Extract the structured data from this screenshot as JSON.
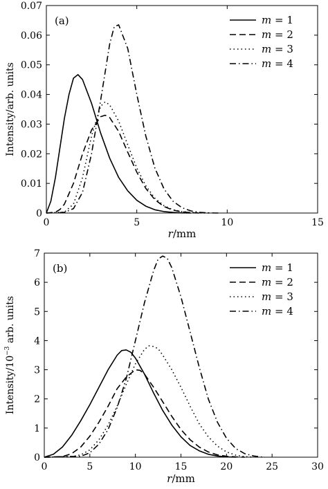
{
  "chart_data": [
    {
      "type": "line",
      "panel_label": "(a)",
      "ylabel": "Intensity/arb. units",
      "xlabel_var": "r",
      "xlabel_unit": "/mm",
      "xlim": [
        0,
        15
      ],
      "ylim": [
        0,
        0.07
      ],
      "xticks": [
        0,
        5,
        10,
        15
      ],
      "yticks": [
        0,
        0.01,
        0.02,
        0.03,
        0.04,
        0.05,
        0.06,
        0.07
      ],
      "ytick_labels": [
        "0",
        "0.01",
        "0.02",
        "0.03",
        "0.04",
        "0.05",
        "0.06",
        "0.07"
      ],
      "grid": false,
      "legend_position": "top-right",
      "series": [
        {
          "name": "m = 1",
          "dash": "solid",
          "x": [
            0,
            0.25,
            0.5,
            0.75,
            1,
            1.25,
            1.5,
            1.75,
            2,
            2.5,
            3,
            3.5,
            4,
            4.5,
            5,
            5.5,
            6,
            6.5,
            7,
            7.5,
            8
          ],
          "y": [
            0,
            0.004,
            0.012,
            0.022,
            0.032,
            0.04,
            0.0455,
            0.0467,
            0.045,
            0.037,
            0.027,
            0.0185,
            0.012,
            0.0075,
            0.0043,
            0.0023,
            0.0011,
            0.0005,
            0.0002,
            5e-05,
            0
          ]
        },
        {
          "name": "m = 2",
          "dash": "dash",
          "x": [
            0,
            0.5,
            0.75,
            1,
            1.5,
            2,
            2.5,
            3,
            3.25,
            3.5,
            4,
            4.5,
            5,
            5.5,
            6,
            6.5,
            7,
            7.5,
            8,
            8.5
          ],
          "y": [
            0,
            0.0003,
            0.0012,
            0.003,
            0.01,
            0.02,
            0.028,
            0.0325,
            0.033,
            0.0322,
            0.0275,
            0.0205,
            0.0138,
            0.0083,
            0.0045,
            0.0022,
            0.001,
            0.0004,
            0.0001,
            0
          ]
        },
        {
          "name": "m = 3",
          "dash": "dot",
          "x": [
            0,
            1,
            1.5,
            2,
            2.5,
            3,
            3.25,
            3.5,
            4,
            4.5,
            5,
            5.5,
            6,
            6.5,
            7,
            7.5,
            8,
            8.5,
            9
          ],
          "y": [
            0,
            0.0003,
            0.003,
            0.012,
            0.026,
            0.036,
            0.0375,
            0.0365,
            0.031,
            0.023,
            0.0152,
            0.0092,
            0.005,
            0.0025,
            0.0011,
            0.0005,
            0.0002,
            5e-05,
            0
          ]
        },
        {
          "name": "m = 4",
          "dash": "dashdot",
          "x": [
            0,
            1,
            1.5,
            2,
            2.5,
            3,
            3.5,
            3.75,
            4,
            4.5,
            5,
            5.5,
            6,
            6.5,
            7,
            7.5,
            8,
            8.5,
            9,
            9.5
          ],
          "y": [
            0,
            0.0002,
            0.0015,
            0.007,
            0.02,
            0.038,
            0.057,
            0.0628,
            0.0635,
            0.0555,
            0.04,
            0.026,
            0.0152,
            0.0082,
            0.004,
            0.0018,
            0.0007,
            0.0002,
            5e-05,
            0
          ]
        }
      ]
    },
    {
      "type": "line",
      "panel_label": "(b)",
      "ylabel_prefix": "Intensity/10",
      "ylabel_exponent": "−3",
      "ylabel_suffix": " arb. units",
      "xlabel_var": "r",
      "xlabel_unit": "/mm",
      "xlim": [
        0,
        30
      ],
      "ylim": [
        0,
        7
      ],
      "xticks": [
        0,
        5,
        10,
        15,
        20,
        25,
        30
      ],
      "yticks": [
        0,
        1,
        2,
        3,
        4,
        5,
        6,
        7
      ],
      "ytick_labels": [
        "0",
        "1",
        "2",
        "3",
        "4",
        "5",
        "6",
        "7"
      ],
      "grid": false,
      "legend_position": "top-right",
      "series": [
        {
          "name": "m = 1",
          "dash": "solid",
          "x": [
            0,
            1,
            2,
            3,
            4,
            5,
            6,
            7,
            8,
            8.5,
            9,
            9.5,
            10,
            11,
            12,
            13,
            14,
            15,
            16,
            17,
            18,
            19,
            20,
            21
          ],
          "y": [
            0,
            0.1,
            0.35,
            0.75,
            1.25,
            1.8,
            2.4,
            3,
            3.5,
            3.66,
            3.68,
            3.6,
            3.4,
            2.85,
            2.2,
            1.6,
            1.1,
            0.7,
            0.4,
            0.22,
            0.1,
            0.04,
            0.01,
            0
          ]
        },
        {
          "name": "m = 2",
          "dash": "dash",
          "x": [
            0,
            2,
            3,
            4,
            5,
            6,
            7,
            8,
            9,
            10,
            10.5,
            11,
            12,
            13,
            14,
            15,
            16,
            17,
            18,
            19,
            20,
            21,
            22
          ],
          "y": [
            0,
            0.02,
            0.12,
            0.35,
            0.72,
            1.2,
            1.75,
            2.35,
            2.75,
            3,
            2.98,
            2.85,
            2.4,
            1.9,
            1.4,
            0.95,
            0.6,
            0.35,
            0.18,
            0.08,
            0.03,
            0.01,
            0
          ]
        },
        {
          "name": "m = 3",
          "dash": "dot",
          "x": [
            0,
            3,
            4,
            5,
            6,
            7,
            8,
            9,
            10,
            11,
            11.5,
            12,
            12.5,
            13,
            14,
            15,
            16,
            17,
            18,
            19,
            20,
            21,
            22,
            23
          ],
          "y": [
            0,
            0.02,
            0.08,
            0.25,
            0.6,
            1.1,
            1.75,
            2.5,
            3.2,
            3.7,
            3.82,
            3.8,
            3.72,
            3.5,
            3,
            2.4,
            1.75,
            1.15,
            0.7,
            0.38,
            0.18,
            0.07,
            0.02,
            0
          ]
        },
        {
          "name": "m = 4",
          "dash": "dashdot",
          "x": [
            0,
            4,
            5,
            6,
            7,
            8,
            9,
            10,
            11,
            12,
            12.5,
            13,
            13.5,
            14,
            15,
            16,
            17,
            18,
            19,
            20,
            21,
            22,
            23,
            24
          ],
          "y": [
            0,
            0.03,
            0.15,
            0.45,
            0.95,
            1.7,
            2.7,
            4,
            5.3,
            6.4,
            6.8,
            6.9,
            6.82,
            6.5,
            5.5,
            4.3,
            3.1,
            2,
            1.2,
            0.65,
            0.3,
            0.12,
            0.04,
            0
          ]
        }
      ]
    }
  ]
}
